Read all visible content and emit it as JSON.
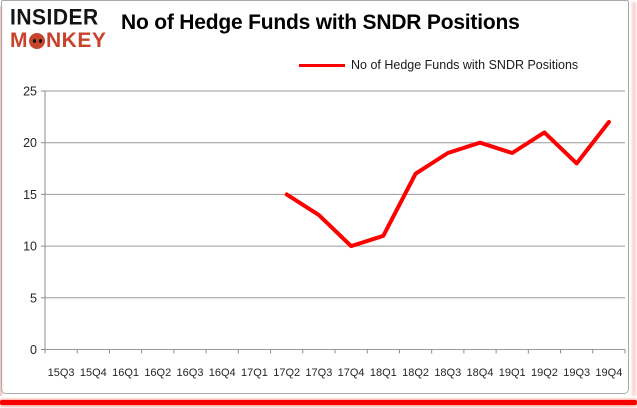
{
  "brand": {
    "line1": "INSIDER",
    "monkey_pre": "M",
    "monkey_post": "NKEY",
    "red": "#c8432c"
  },
  "header": {
    "title": "No of Hedge Funds with SNDR Positions"
  },
  "legend": {
    "label": "No of Hedge Funds with SNDR Positions",
    "line_color": "#ff0000"
  },
  "chart_data": {
    "type": "line",
    "title": "No of Hedge Funds with SNDR Positions",
    "categories": [
      "15Q3",
      "15Q4",
      "16Q1",
      "16Q2",
      "16Q3",
      "16Q4",
      "17Q1",
      "17Q2",
      "17Q3",
      "17Q4",
      "18Q1",
      "18Q2",
      "18Q3",
      "18Q4",
      "19Q1",
      "19Q2",
      "19Q3",
      "19Q4"
    ],
    "series": [
      {
        "name": "No of Hedge Funds with SNDR Positions",
        "color": "#ff0000",
        "values": [
          null,
          null,
          null,
          null,
          null,
          null,
          null,
          15,
          13,
          10,
          11,
          17,
          19,
          20,
          19,
          21,
          18,
          22
        ]
      }
    ],
    "ylim": [
      0,
      25
    ],
    "yticks": [
      0,
      5,
      10,
      15,
      20,
      25
    ],
    "grid": true,
    "legend_position": "top-center",
    "gridline_color": "#9b9b9b",
    "axis_color": "#8c8c8c",
    "tick_label_color": "#262626"
  }
}
